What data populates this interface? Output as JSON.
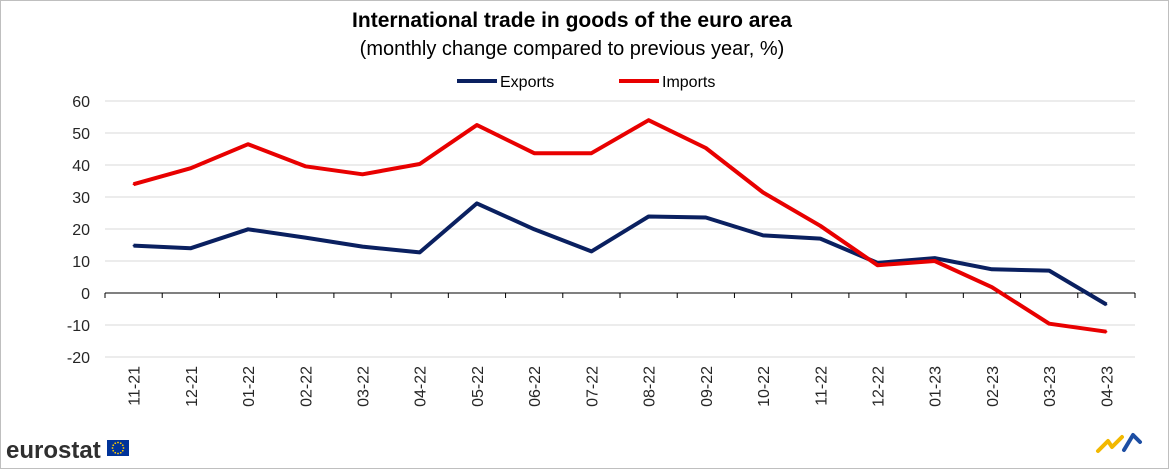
{
  "chart_data": {
    "type": "line",
    "title": "International trade in goods of the euro area",
    "subtitle": "(monthly change compared to previous year, %)",
    "categories": [
      "11-21",
      "12-21",
      "01-22",
      "02-22",
      "03-22",
      "04-22",
      "05-22",
      "06-22",
      "07-22",
      "08-22",
      "09-22",
      "10-22",
      "11-22",
      "12-22",
      "01-23",
      "02-23",
      "03-23",
      "04-23"
    ],
    "series": [
      {
        "name": "Exports",
        "color": "#0a2060",
        "values": [
          14.8,
          14.0,
          19.9,
          17.3,
          14.5,
          12.7,
          28.0,
          19.9,
          13.0,
          23.9,
          23.6,
          18.0,
          17.0,
          9.4,
          10.9,
          7.4,
          7.0,
          -3.6
        ]
      },
      {
        "name": "Imports",
        "color": "#e80000",
        "values": [
          34.0,
          39.0,
          46.5,
          39.6,
          37.1,
          40.3,
          52.5,
          43.7,
          43.7,
          54.0,
          45.3,
          31.4,
          21.0,
          8.7,
          10.0,
          1.8,
          -9.6,
          -12.1
        ]
      }
    ],
    "ylim": [
      -20,
      60
    ],
    "yticks": [
      60,
      50,
      40,
      30,
      20,
      10,
      0,
      -10,
      -20
    ],
    "grid": true,
    "legend_position": "top-center"
  },
  "logo": {
    "text": "eurostat",
    "icon": "eu-flag-icon"
  },
  "corner_mark": {
    "icon": "lightning-mark-icon"
  }
}
